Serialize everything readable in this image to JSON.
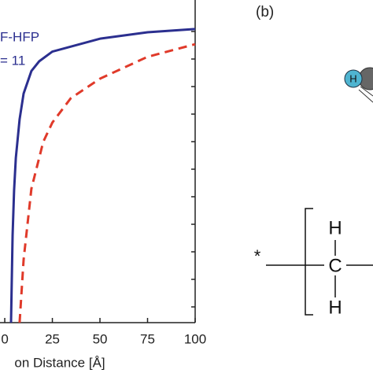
{
  "chart_data": {
    "type": "line",
    "annotations": [
      "F-HFP",
      "= 11"
    ],
    "x_label": "on Distance [Å]",
    "xlim": [
      -2.5,
      100
    ],
    "ylim": [
      0,
      10
    ],
    "xticks": [
      0,
      25,
      50,
      75,
      100
    ],
    "series": [
      {
        "color": "#2b2f8f",
        "dash": false,
        "x": [
          3.3,
          4.1,
          4.9,
          5.8,
          7.8,
          9.9,
          14,
          18.1,
          25,
          50,
          75,
          100
        ],
        "values": [
          0,
          2.7,
          4.1,
          5.1,
          6.3,
          7.1,
          7.8,
          8.1,
          8.4,
          8.8,
          9.0,
          9.1
        ]
      },
      {
        "color": "#e03a2a",
        "dash": true,
        "x": [
          7.8,
          9.9,
          14,
          20.2,
          25,
          34.6,
          50,
          75,
          100
        ],
        "values": [
          0,
          1.95,
          4.15,
          5.6,
          6.2,
          6.95,
          7.56,
          8.24,
          8.63
        ]
      }
    ]
  },
  "panel_b": {
    "label": "(b)",
    "atom": "H",
    "star": "*",
    "top_atom": "H",
    "center_atom": "C",
    "bottom_atom": "H"
  }
}
